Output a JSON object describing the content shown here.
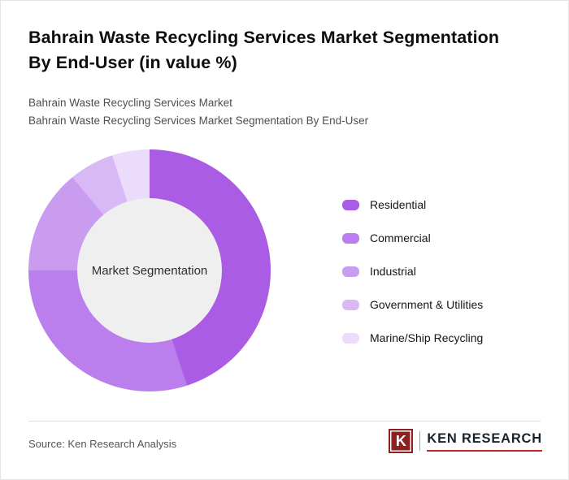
{
  "header": {
    "title": "Bahrain Waste Recycling Services Market Segmentation By End-User (in value %)",
    "subtitle1": "Bahrain Waste Recycling Services Market",
    "subtitle2": "Bahrain Waste Recycling Services Market Segmentation By End-User"
  },
  "chart_data": {
    "type": "pie",
    "donut": true,
    "title": "Bahrain Waste Recycling Services Market Segmentation By End-User (in value %)",
    "center_label": "Market Segmentation",
    "categories": [
      "Residential",
      "Commercial",
      "Industrial",
      "Government & Utilities",
      "Marine/Ship Recycling"
    ],
    "values": [
      45,
      30,
      14,
      6,
      5
    ],
    "colors": [
      "#aa5ce4",
      "#ba7fec",
      "#ca9cf0",
      "#d9b9f5",
      "#ebdcfb"
    ],
    "hole_color": "#efefef",
    "legend_position": "right",
    "start_angle_deg": 0,
    "direction": "clockwise"
  },
  "footer": {
    "source": "Source: Ken Research Analysis",
    "logo_letter": "K",
    "logo_text": "KEN RESEARCH",
    "logo_box_color": "#8e1f1f",
    "logo_underline_color": "#c0272d"
  }
}
